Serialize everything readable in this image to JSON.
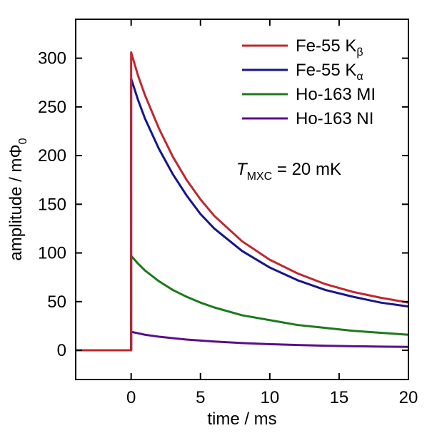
{
  "chart_data": {
    "type": "line",
    "xlabel": "time / ms",
    "ylabel": "amplitude  /  mΦ",
    "ylabel_sub": "0",
    "xlim": [
      -4,
      20
    ],
    "ylim": [
      -30,
      340
    ],
    "xticks": [
      0,
      5,
      10,
      15,
      20
    ],
    "yticks": [
      0,
      50,
      100,
      150,
      200,
      250,
      300
    ],
    "grid": false,
    "legend_position": "top-right",
    "annotation": {
      "symbol": "T",
      "sub": "MXC",
      "text": " = 20 mK"
    },
    "x": [
      -4,
      -0.001,
      0,
      0.5,
      1,
      2,
      3,
      4,
      5,
      6,
      8,
      10,
      12,
      14,
      16,
      18,
      20
    ],
    "series": [
      {
        "name": "Fe-55 K",
        "name_sub": "β",
        "color": "#c0272d",
        "values": [
          0,
          0,
          306,
          282,
          262,
          228,
          199,
          175,
          155,
          138,
          112,
          93,
          79,
          68,
          60,
          54,
          49
        ]
      },
      {
        "name": "Fe-55 K",
        "name_sub": "α",
        "color": "#16168c",
        "values": [
          0,
          0,
          279,
          257,
          238,
          207,
          181,
          159,
          140,
          125,
          102,
          85,
          72,
          62,
          55,
          49,
          45
        ]
      },
      {
        "name": "Ho-163 MI",
        "name_sub": "",
        "color": "#1b7a1b",
        "values": [
          0,
          0,
          97,
          89,
          82,
          71,
          62,
          55,
          49,
          44,
          36,
          31,
          26,
          23,
          20,
          18,
          16
        ]
      },
      {
        "name": "Ho-163 NI",
        "name_sub": "",
        "color": "#5a0f8a",
        "values": [
          0,
          0,
          19,
          17.5,
          16,
          14,
          12.5,
          11,
          10,
          9,
          7.5,
          6.3,
          5.4,
          4.7,
          4.2,
          3.8,
          3.5
        ]
      }
    ]
  }
}
